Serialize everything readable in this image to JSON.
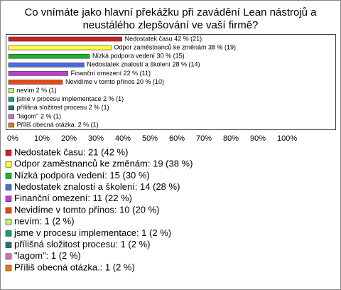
{
  "chart_data": {
    "type": "barh",
    "title_lines": [
      "Co vnímáte jako hlavní překážku při zavádění Lean nástrojů a",
      "neustálého zlepšování ve vaší firmě?"
    ],
    "values": [
      42,
      38,
      30,
      28,
      22,
      20,
      2,
      2,
      2,
      2,
      2
    ],
    "value_labels": [
      "Nedostatek času 42 % (21)",
      "Odpor zaměstnanců ke změnám 38 % (19)",
      "Nízká podpora vedení 30 % (15)",
      "Nedostatek znalostí a školení 28 % (14)",
      "Finanční omezení 22 % (11)",
      "Nevidíme v tomto přínos 20 % (10)",
      "nevím 2 % (1)",
      "jsme v procesu implementace 2 % (1)",
      "přílišná složitost procesu 2 % (1)",
      "\"lagom\" 2 % (1)",
      "Příliš obecná otázka. 2 % (1)"
    ],
    "legend": [
      "Nedostatek času: 21 (42 %)",
      "Odpor zaměstnanců ke změnám: 19 (38 %)",
      "Nízká podpora vedení: 15 (30 %)",
      "Nedostatek znalostí a školení: 14 (28 %)",
      "Finanční omezení: 11 (22 %)",
      "Nevidíme v tomto přínos: 10 (20 %)",
      "nevím: 1 (2 %)",
      "jsme v procesu implementace: 1 (2 %)",
      "přílišná složitost procesu: 1 (2 %)",
      "\"lagom\": 1 (2 %)",
      "Příliš obecná otázka.: 1 (2 %)"
    ],
    "colors": [
      "#d42020",
      "#ffff40",
      "#20b030",
      "#4a6ae0",
      "#c040d0",
      "#e84818",
      "#c8f070",
      "#10a070",
      "#207878",
      "#d070c0",
      "#e87818"
    ],
    "xlim": [
      0,
      100
    ],
    "xticks": [
      {
        "value": 0,
        "label": "0%"
      },
      {
        "value": 10,
        "label": "10%"
      },
      {
        "value": 20,
        "label": "20%"
      },
      {
        "value": 30,
        "label": "30%"
      },
      {
        "value": 40,
        "label": "40%"
      },
      {
        "value": 50,
        "label": "50%"
      },
      {
        "value": 60,
        "label": "60%"
      },
      {
        "value": 70,
        "label": "70%"
      },
      {
        "value": 80,
        "label": "80%"
      },
      {
        "value": 90,
        "label": "90%"
      },
      {
        "value": 100,
        "label": "100%"
      }
    ]
  }
}
